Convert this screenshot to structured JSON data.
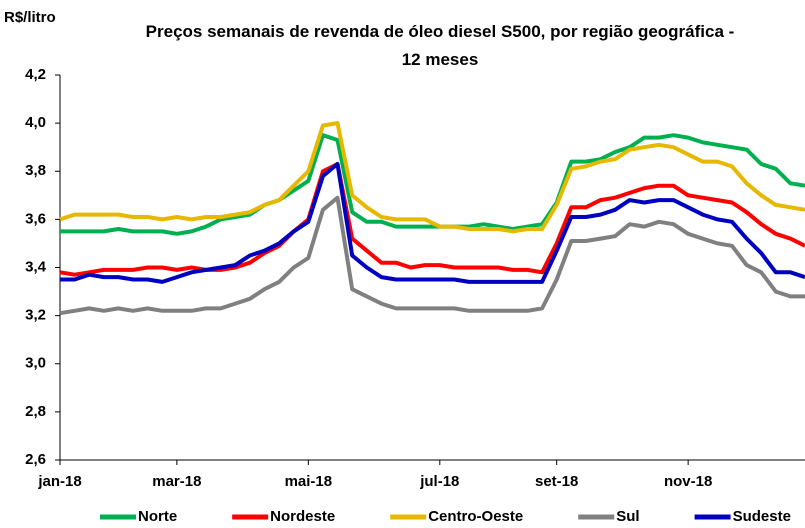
{
  "chart_data": {
    "type": "line",
    "title": "Preços semanais de revenda de óleo diesel S500, por região geográfica - 12 meses",
    "y_label": "R$/litro",
    "categories": [
      "jan-18",
      null,
      null,
      null,
      null,
      null,
      null,
      null,
      "mar-18",
      null,
      null,
      null,
      null,
      null,
      null,
      null,
      null,
      "mai-18",
      null,
      null,
      null,
      null,
      null,
      null,
      null,
      null,
      "jul-18",
      null,
      null,
      null,
      null,
      null,
      null,
      null,
      "set-18",
      null,
      null,
      null,
      null,
      null,
      null,
      null,
      null,
      "nov-18",
      null,
      null,
      null,
      null,
      null,
      null,
      null,
      null
    ],
    "series": [
      {
        "name": "Norte",
        "color": "#00b050",
        "values": [
          3.55,
          3.55,
          3.55,
          3.55,
          3.56,
          3.55,
          3.55,
          3.55,
          3.54,
          3.55,
          3.57,
          3.6,
          3.61,
          3.62,
          3.66,
          3.68,
          3.72,
          3.76,
          3.95,
          3.93,
          3.63,
          3.59,
          3.59,
          3.57,
          3.57,
          3.57,
          3.57,
          3.57,
          3.57,
          3.58,
          3.57,
          3.56,
          3.57,
          3.58,
          3.67,
          3.84,
          3.84,
          3.85,
          3.88,
          3.9,
          3.94,
          3.94,
          3.95,
          3.94,
          3.92,
          3.91,
          3.9,
          3.89,
          3.83,
          3.81,
          3.75,
          3.74
        ]
      },
      {
        "name": "Nordeste",
        "color": "#ff0000",
        "values": [
          3.38,
          3.37,
          3.38,
          3.39,
          3.39,
          3.39,
          3.4,
          3.4,
          3.39,
          3.4,
          3.39,
          3.39,
          3.4,
          3.42,
          3.46,
          3.49,
          3.55,
          3.6,
          3.8,
          3.83,
          3.52,
          3.47,
          3.42,
          3.42,
          3.4,
          3.41,
          3.41,
          3.4,
          3.4,
          3.4,
          3.4,
          3.39,
          3.39,
          3.38,
          3.5,
          3.65,
          3.65,
          3.68,
          3.69,
          3.71,
          3.73,
          3.74,
          3.74,
          3.7,
          3.69,
          3.68,
          3.67,
          3.63,
          3.58,
          3.54,
          3.52,
          3.49
        ]
      },
      {
        "name": "Centro-Oeste",
        "color": "#e6b800",
        "values": [
          3.6,
          3.62,
          3.62,
          3.62,
          3.62,
          3.61,
          3.61,
          3.6,
          3.61,
          3.6,
          3.61,
          3.61,
          3.62,
          3.63,
          3.66,
          3.68,
          3.74,
          3.8,
          3.99,
          4.0,
          3.7,
          3.65,
          3.61,
          3.6,
          3.6,
          3.6,
          3.57,
          3.57,
          3.56,
          3.56,
          3.56,
          3.55,
          3.56,
          3.56,
          3.66,
          3.81,
          3.82,
          3.84,
          3.85,
          3.89,
          3.9,
          3.91,
          3.9,
          3.87,
          3.84,
          3.84,
          3.82,
          3.75,
          3.7,
          3.66,
          3.65,
          3.64
        ]
      },
      {
        "name": "Sul",
        "color": "#808080",
        "values": [
          3.21,
          3.22,
          3.23,
          3.22,
          3.23,
          3.22,
          3.23,
          3.22,
          3.22,
          3.22,
          3.23,
          3.23,
          3.25,
          3.27,
          3.31,
          3.34,
          3.4,
          3.44,
          3.64,
          3.69,
          3.31,
          3.28,
          3.25,
          3.23,
          3.23,
          3.23,
          3.23,
          3.23,
          3.22,
          3.22,
          3.22,
          3.22,
          3.22,
          3.23,
          3.35,
          3.51,
          3.51,
          3.52,
          3.53,
          3.58,
          3.57,
          3.59,
          3.58,
          3.54,
          3.52,
          3.5,
          3.49,
          3.41,
          3.38,
          3.3,
          3.28,
          3.28
        ]
      },
      {
        "name": "Sudeste",
        "color": "#0000c0",
        "values": [
          3.35,
          3.35,
          3.37,
          3.36,
          3.36,
          3.35,
          3.35,
          3.34,
          3.36,
          3.38,
          3.39,
          3.4,
          3.41,
          3.45,
          3.47,
          3.5,
          3.55,
          3.59,
          3.78,
          3.83,
          3.45,
          3.4,
          3.36,
          3.35,
          3.35,
          3.35,
          3.35,
          3.35,
          3.34,
          3.34,
          3.34,
          3.34,
          3.34,
          3.34,
          3.47,
          3.61,
          3.61,
          3.62,
          3.64,
          3.68,
          3.67,
          3.68,
          3.68,
          3.65,
          3.62,
          3.6,
          3.59,
          3.52,
          3.46,
          3.38,
          3.38,
          3.36
        ]
      }
    ],
    "ylim": [
      2.6,
      4.2
    ],
    "yticks": [
      {
        "value": 2.6,
        "label": "2,6"
      },
      {
        "value": 2.8,
        "label": "2,8"
      },
      {
        "value": 3.0,
        "label": "3,0"
      },
      {
        "value": 3.2,
        "label": "3,2"
      },
      {
        "value": 3.4,
        "label": "3,4"
      },
      {
        "value": 3.6,
        "label": "3,6"
      },
      {
        "value": 3.8,
        "label": "3,8"
      },
      {
        "value": 4.0,
        "label": "4,0"
      },
      {
        "value": 4.2,
        "label": "4,2"
      }
    ],
    "grid": false,
    "legend": "bottom"
  }
}
